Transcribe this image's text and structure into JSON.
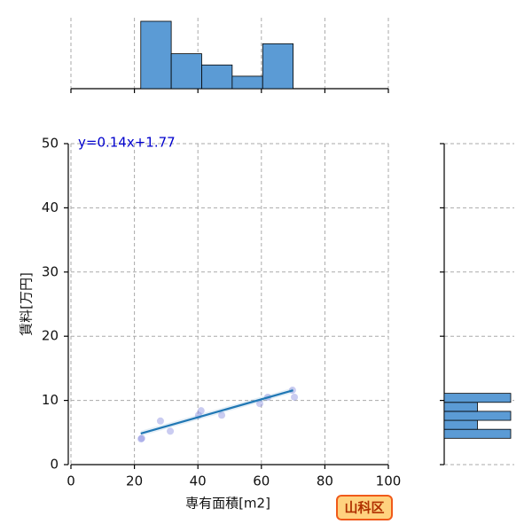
{
  "chart_data": {
    "type": "scatter",
    "x_label": "専有面積[m2]",
    "y_label": "賃料[万円]",
    "annotation": "y=0.14x+1.77",
    "badge": "山科区",
    "xlim": [
      0,
      100
    ],
    "xticks": [
      0,
      20,
      40,
      60,
      80,
      100
    ],
    "ylim": [
      0,
      50
    ],
    "yticks": [
      0,
      10,
      20,
      30,
      40,
      50
    ],
    "grid": true,
    "color": "#5b9bd5",
    "point_color": "#8a8fe0",
    "line_color": "#1f77b4",
    "annotation_color": "#0000cc",
    "x": [
      22.3,
      22.1,
      28.2,
      31.3,
      40.2,
      41,
      47.5,
      59.5,
      62,
      69.8,
      70.4
    ],
    "values": [
      4.1,
      4,
      6.8,
      5.2,
      7.7,
      8.4,
      7.7,
      9.5,
      10.5,
      11.6,
      10.5
    ],
    "fit_line": {
      "x": [
        22,
        70
      ],
      "values": [
        4.85,
        11.57
      ]
    },
    "x_hist": {
      "bins": [
        22,
        31.6,
        41.2,
        50.8,
        60.4,
        70
      ],
      "counts": [
        5.4,
        2.8,
        1.9,
        1,
        3.6
      ]
    },
    "y_hist": {
      "bins": [
        4.1,
        5.5,
        6.9,
        8.3,
        9.7,
        11.1
      ],
      "counts": [
        2,
        1,
        2,
        1,
        2
      ]
    }
  }
}
